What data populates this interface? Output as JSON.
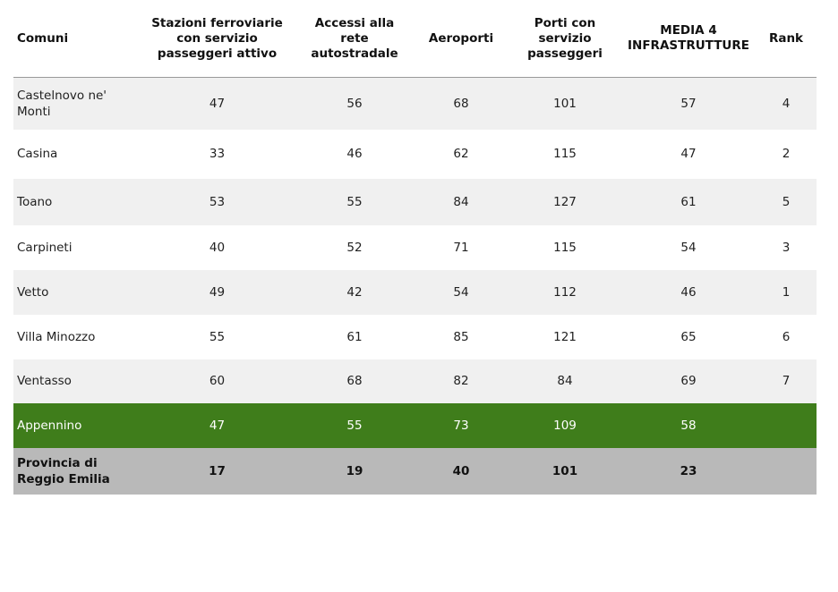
{
  "table": {
    "headers": [
      "Comuni",
      "Stazioni ferroviarie con servizio passeggeri attivo",
      "Accessi alla rete autostradale",
      "Aeroporti",
      "Porti con servizio passeggeri",
      "MEDIA 4 INFRASTRUTTURE",
      "Rank"
    ],
    "rows": [
      [
        "Castelnovo ne' Monti",
        47,
        56,
        68,
        101,
        57,
        4
      ],
      [
        "Casina",
        33,
        46,
        62,
        115,
        47,
        2
      ],
      [
        "Toano",
        53,
        55,
        84,
        127,
        61,
        5
      ],
      [
        "Carpineti",
        40,
        52,
        71,
        115,
        54,
        3
      ],
      [
        "Vetto",
        49,
        42,
        54,
        112,
        46,
        1
      ],
      [
        "Villa Minozzo",
        55,
        61,
        85,
        121,
        65,
        6
      ],
      [
        "Ventasso",
        60,
        68,
        82,
        84,
        69,
        7
      ],
      [
        "Appennino",
        47,
        55,
        73,
        109,
        58
      ],
      [
        "Provincia di Reggio Emilia",
        17,
        19,
        40,
        101,
        23
      ]
    ]
  }
}
